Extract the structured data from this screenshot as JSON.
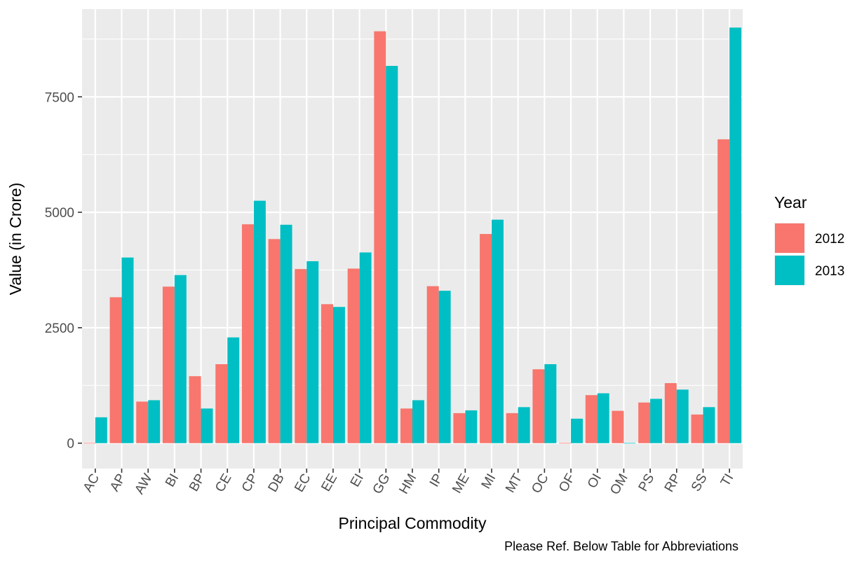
{
  "chart_data": {
    "type": "bar",
    "xlabel": "Principal Commodity",
    "ylabel": "Value (in Crore)",
    "caption": "Please Ref. Below Table for Abbreviations",
    "legend_title": "Year",
    "legend_position": "right",
    "grid": true,
    "ylim": [
      -550,
      9400
    ],
    "yticks": [
      0,
      2500,
      5000,
      7500
    ],
    "categories": [
      "AC",
      "AP",
      "AW",
      "BI",
      "BP",
      "CE",
      "CP",
      "DB",
      "EC",
      "EE",
      "EI",
      "GG",
      "HM",
      "IP",
      "ME",
      "MI",
      "MT",
      "OC",
      "OF",
      "OI",
      "OM",
      "PS",
      "RP",
      "SS",
      "TI"
    ],
    "series": [
      {
        "name": "2012",
        "color": "#F8766D",
        "values": [
          5,
          3160,
          900,
          3390,
          1450,
          1710,
          4740,
          4420,
          3770,
          3010,
          3780,
          8920,
          750,
          3400,
          650,
          4530,
          650,
          1600,
          5,
          1040,
          700,
          880,
          1300,
          620,
          6580
        ]
      },
      {
        "name": "2013",
        "color": "#00BFC4",
        "values": [
          560,
          4020,
          930,
          3640,
          750,
          2290,
          5250,
          4730,
          3940,
          2950,
          4130,
          8170,
          930,
          3300,
          710,
          4840,
          780,
          1710,
          530,
          1080,
          5,
          960,
          1160,
          780,
          9000
        ]
      }
    ]
  }
}
